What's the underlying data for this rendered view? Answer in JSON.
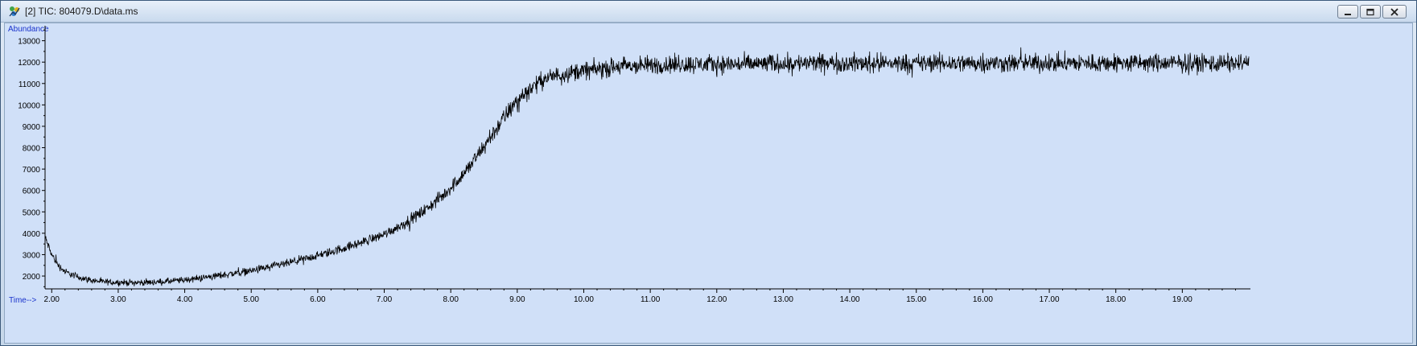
{
  "window": {
    "title": "[2] TIC: 804079.D\\data.ms",
    "icon": "chromatogram-app-icon",
    "controls": [
      "minimize",
      "maximize",
      "close"
    ]
  },
  "colors": {
    "plot_background": "#d0e0f8",
    "trace": "#000000",
    "axis_label": "#1a33cc"
  },
  "chart_data": {
    "type": "line",
    "ylabel": "Abundance",
    "xlabel": "Time-->",
    "xlim": [
      1.9,
      20.0
    ],
    "ylim": [
      1400,
      13700
    ],
    "x_ticks": [
      2.0,
      3.0,
      4.0,
      5.0,
      6.0,
      7.0,
      8.0,
      9.0,
      10.0,
      11.0,
      12.0,
      13.0,
      14.0,
      15.0,
      16.0,
      17.0,
      18.0,
      19.0
    ],
    "x_tick_labels": [
      "2.00",
      "3.00",
      "4.00",
      "5.00",
      "6.00",
      "7.00",
      "8.00",
      "9.00",
      "10.00",
      "11.00",
      "12.00",
      "13.00",
      "14.00",
      "15.00",
      "16.00",
      "17.00",
      "18.00",
      "19.00"
    ],
    "y_ticks": [
      2000,
      3000,
      4000,
      5000,
      6000,
      7000,
      8000,
      9000,
      10000,
      11000,
      12000,
      13000
    ],
    "y_tick_labels": [
      "2000",
      "3000",
      "4000",
      "5000",
      "6000",
      "7000",
      "8000",
      "9000",
      "10000",
      "11000",
      "12000",
      "13000"
    ],
    "grid": false,
    "series": [
      {
        "x": [
          1.9,
          2.0,
          2.1,
          2.2,
          2.4,
          2.6,
          2.8,
          3.0,
          3.2,
          3.4,
          3.6,
          3.8,
          4.0,
          4.3,
          4.6,
          5.0,
          5.5,
          6.0,
          6.5,
          7.0,
          7.3,
          7.6,
          7.9,
          8.2,
          8.4,
          8.6,
          8.8,
          9.0,
          9.2,
          9.4,
          9.6,
          9.8,
          10.0,
          10.3,
          10.6,
          11.0,
          11.5,
          12.0,
          12.5,
          13.0,
          14.0,
          15.0,
          16.0,
          17.0,
          18.0,
          19.0,
          20.0
        ],
        "y": [
          3800,
          3000,
          2500,
          2200,
          1950,
          1800,
          1720,
          1700,
          1690,
          1700,
          1720,
          1760,
          1820,
          1930,
          2060,
          2250,
          2560,
          2950,
          3400,
          3950,
          4450,
          5050,
          5800,
          6800,
          7600,
          8500,
          9400,
          10200,
          10800,
          11200,
          11400,
          11500,
          11600,
          11700,
          11800,
          11850,
          11900,
          11900,
          11900,
          11950,
          11950,
          11950,
          11950,
          11950,
          11950,
          11950,
          11950
        ],
        "noise_amplitude": [
          300,
          280,
          260,
          240,
          230,
          220,
          220,
          220,
          220,
          220,
          220,
          230,
          240,
          250,
          260,
          270,
          280,
          300,
          320,
          340,
          380,
          420,
          460,
          520,
          560,
          600,
          640,
          620,
          600,
          580,
          580,
          600,
          620,
          640,
          650,
          650,
          650,
          650,
          650,
          650,
          650,
          650,
          650,
          650,
          650,
          650,
          650
        ]
      }
    ]
  }
}
